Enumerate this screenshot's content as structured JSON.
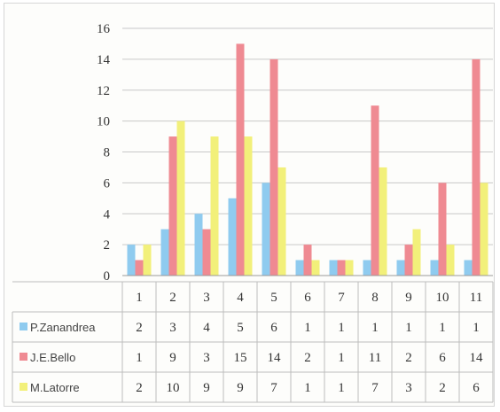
{
  "chart_data": {
    "type": "bar",
    "categories": [
      "1",
      "2",
      "3",
      "4",
      "5",
      "6",
      "7",
      "8",
      "9",
      "10",
      "11"
    ],
    "series": [
      {
        "name": "P.Zanandrea",
        "color": "#8fcbef",
        "values": [
          2,
          3,
          4,
          5,
          6,
          1,
          1,
          1,
          1,
          1,
          1
        ]
      },
      {
        "name": "J.E.Bello",
        "color": "#ef8a92",
        "values": [
          1,
          9,
          3,
          15,
          14,
          2,
          1,
          11,
          2,
          6,
          14
        ]
      },
      {
        "name": "M.Latorre",
        "color": "#f2f07a",
        "values": [
          2,
          10,
          9,
          9,
          7,
          1,
          1,
          7,
          3,
          2,
          6
        ]
      }
    ],
    "ylim": [
      0,
      16
    ],
    "yticks": [
      "0",
      "2",
      "4",
      "6",
      "8",
      "10",
      "12",
      "14",
      "16"
    ],
    "grid": true,
    "legend": "data-table",
    "title": "",
    "xlabel": "",
    "ylabel": ""
  }
}
